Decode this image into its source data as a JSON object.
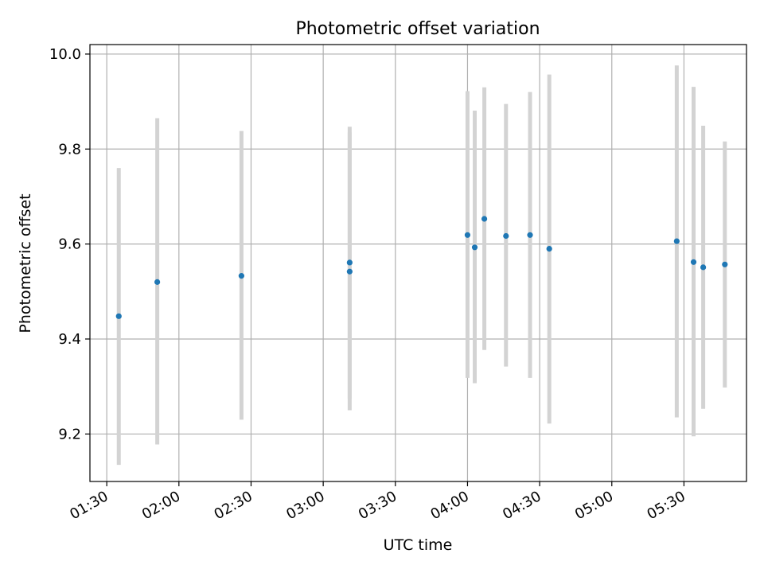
{
  "chart_data": {
    "type": "scatter",
    "title": "Photometric offset variation",
    "xlabel": "UTC time",
    "ylabel": "Photometric offset",
    "xlim": [
      "01:23",
      "05:56"
    ],
    "ylim": [
      9.1,
      10.02
    ],
    "grid": true,
    "x_ticks": [
      "01:30",
      "02:00",
      "02:30",
      "03:00",
      "03:30",
      "04:00",
      "04:30",
      "05:00",
      "05:30"
    ],
    "y_ticks": [
      "9.2",
      "9.4",
      "9.6",
      "9.8",
      "10.0"
    ],
    "colors": {
      "points": "#1f77b4",
      "error_bars": "#d3d3d3",
      "grid": "#b0b0b0"
    },
    "points": [
      {
        "x": "01:35",
        "y": 9.448,
        "ylo": 9.135,
        "yhi": 9.76
      },
      {
        "x": "01:51",
        "y": 9.52,
        "ylo": 9.178,
        "yhi": 9.865
      },
      {
        "x": "02:26",
        "y": 9.533,
        "ylo": 9.23,
        "yhi": 9.838
      },
      {
        "x": "03:11",
        "y": 9.561,
        "ylo": 9.275,
        "yhi": 9.847
      },
      {
        "x": "03:11",
        "y": 9.542,
        "ylo": 9.25,
        "yhi": 9.835
      },
      {
        "x": "04:00",
        "y": 9.619,
        "ylo": 9.318,
        "yhi": 9.922
      },
      {
        "x": "04:03",
        "y": 9.593,
        "ylo": 9.307,
        "yhi": 9.881
      },
      {
        "x": "04:07",
        "y": 9.653,
        "ylo": 9.377,
        "yhi": 9.93
      },
      {
        "x": "04:16",
        "y": 9.617,
        "ylo": 9.342,
        "yhi": 9.895
      },
      {
        "x": "04:26",
        "y": 9.619,
        "ylo": 9.318,
        "yhi": 9.92
      },
      {
        "x": "04:34",
        "y": 9.59,
        "ylo": 9.222,
        "yhi": 9.957
      },
      {
        "x": "05:27",
        "y": 9.606,
        "ylo": 9.235,
        "yhi": 9.976
      },
      {
        "x": "05:34",
        "y": 9.562,
        "ylo": 9.195,
        "yhi": 9.931
      },
      {
        "x": "05:38",
        "y": 9.551,
        "ylo": 9.253,
        "yhi": 9.849
      },
      {
        "x": "05:47",
        "y": 9.557,
        "ylo": 9.298,
        "yhi": 9.816
      }
    ]
  }
}
